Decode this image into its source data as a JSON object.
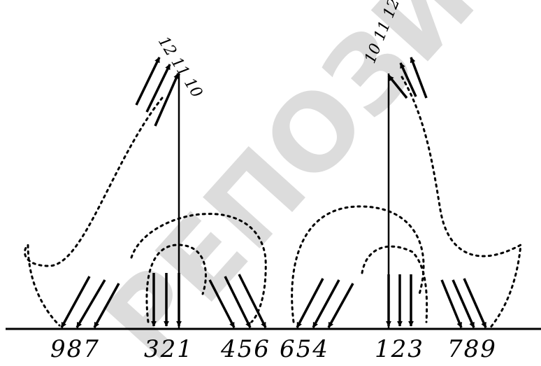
{
  "watermark": "РЕПОЗИТОРИЙ БГУ",
  "bottom_labels": [
    "987",
    "321",
    "456",
    "654",
    "123",
    "789"
  ],
  "top_labels": {
    "left": "12 11 10",
    "right": "10 11 12"
  },
  "colors": {
    "ink": "#000000",
    "watermark": "#bfbfbf",
    "background": "#ffffff"
  }
}
